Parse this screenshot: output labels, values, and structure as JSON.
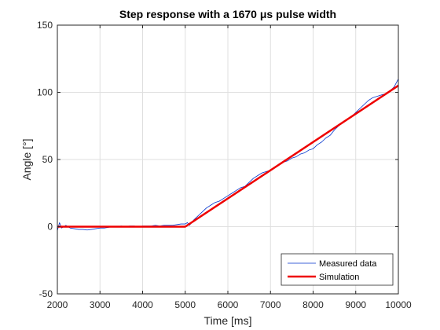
{
  "chart_data": {
    "type": "line",
    "title": "Step response with a 1670 μs pulse width",
    "xlabel": "Time [ms]",
    "ylabel": "Angle [°]",
    "xlim": [
      2000,
      10000
    ],
    "ylim": [
      -50,
      150
    ],
    "xticks": [
      2000,
      3000,
      4000,
      5000,
      6000,
      7000,
      8000,
      9000,
      10000
    ],
    "yticks": [
      -50,
      0,
      50,
      100,
      150
    ],
    "grid": true,
    "legend_position": "bottom-right",
    "series": [
      {
        "name": "Measured data",
        "color": "#0033cc",
        "x": [
          2000,
          2050,
          2100,
          2200,
          2300,
          2400,
          2500,
          2600,
          2700,
          2800,
          2900,
          3000,
          3100,
          3200,
          3300,
          3400,
          3500,
          3600,
          3700,
          3800,
          3900,
          4000,
          4100,
          4200,
          4300,
          4400,
          4500,
          4600,
          4700,
          4800,
          4900,
          5000,
          5050,
          5100,
          5200,
          5300,
          5400,
          5500,
          5600,
          5700,
          5800,
          5900,
          6000,
          6100,
          6200,
          6300,
          6400,
          6500,
          6600,
          6700,
          6800,
          6900,
          7000,
          7100,
          7200,
          7300,
          7400,
          7500,
          7600,
          7700,
          7800,
          7900,
          8000,
          8100,
          8200,
          8300,
          8400,
          8500,
          8600,
          8700,
          8800,
          8900,
          9000,
          9100,
          9200,
          9300,
          9400,
          9500,
          9600,
          9700,
          9800,
          9900,
          10000
        ],
        "y": [
          -3,
          3,
          -1,
          1,
          -1,
          -1.5,
          -2,
          -2,
          -2.5,
          -2,
          -1.5,
          -1,
          -1,
          -0.5,
          0,
          0,
          0.5,
          0,
          0.5,
          0.5,
          0,
          0.5,
          0.5,
          0.5,
          1,
          0.5,
          1,
          1,
          1,
          1.5,
          2,
          2,
          3,
          1,
          5,
          8,
          11,
          14,
          16,
          18,
          19,
          21,
          23,
          25,
          27,
          29,
          30,
          33,
          36,
          38,
          40,
          41,
          42,
          44,
          46,
          48,
          49,
          51,
          52,
          54,
          55,
          57,
          58,
          61,
          63,
          66,
          68,
          72,
          75,
          78,
          80,
          82,
          85,
          88,
          91,
          94,
          96,
          97,
          98,
          99,
          101,
          104,
          110
        ]
      },
      {
        "name": "Simulation",
        "color": "#ee0000",
        "x": [
          2000,
          5000,
          10000
        ],
        "y": [
          0,
          0,
          105
        ]
      }
    ]
  }
}
